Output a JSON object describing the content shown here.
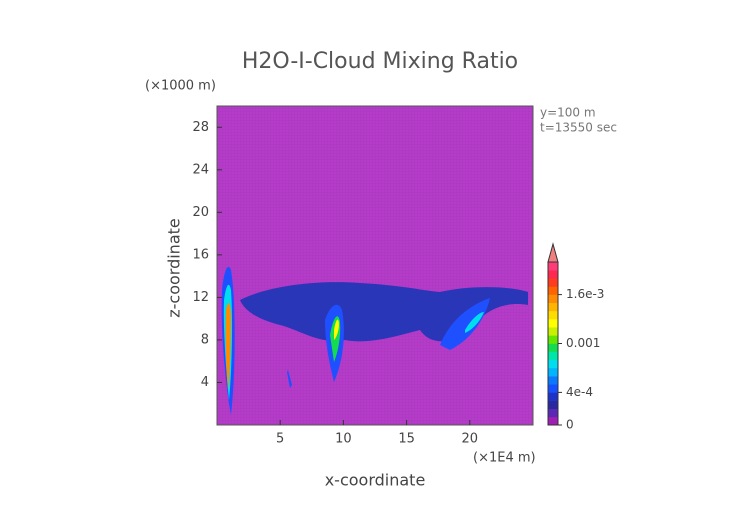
{
  "chart_data": {
    "type": "contour",
    "title": "H2O-I-Cloud Mixing Ratio",
    "xlabel": "x-coordinate",
    "ylabel": "z-coordinate",
    "x_unit": "(×1E4 m)",
    "y_unit": "(×1000 m)",
    "annotations": [
      "y=100 m",
      "t=13550 sec"
    ],
    "xlim": [
      0,
      25
    ],
    "xticks": [
      5,
      10,
      15,
      20
    ],
    "ylim": [
      0,
      30
    ],
    "yticks": [
      4,
      8,
      12,
      16,
      20,
      24,
      28
    ],
    "background": "#b43cc8",
    "clim": [
      0,
      0.002
    ],
    "cticks": [
      0,
      {
        "value": 0.0004,
        "label": "4e-4"
      },
      0.001,
      {
        "value": 0.0016,
        "label": "1.6e-3"
      }
    ],
    "colors": [
      "#a01eb4",
      "#5a28b4",
      "#2828a0",
      "#1e32c8",
      "#1450ff",
      "#0a78ff",
      "#00b4ff",
      "#00dcf0",
      "#00e6aa",
      "#14dc50",
      "#64e600",
      "#c8f000",
      "#ffff00",
      "#ffdc00",
      "#ffb400",
      "#ff8c00",
      "#ff6400",
      "#ff3c1e",
      "#ff2850",
      "#ff3c78"
    ],
    "extend_color": "#f08080"
  }
}
